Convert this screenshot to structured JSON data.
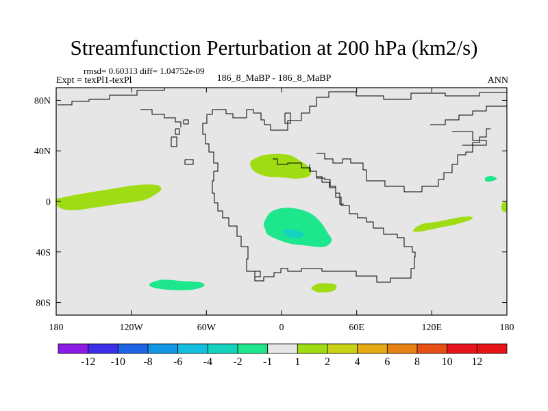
{
  "header": {
    "title": "Streamfunction Perturbation at 200 hPa (km2/s)",
    "stats": "rmsd= 0.60313 diff= 1.04752e-09",
    "left_label": "Expt = texPl1-texPl",
    "center_label": "186_8_MaBP - 186_8_MaBP",
    "right_label": "ANN"
  },
  "chart_data": {
    "type": "heatmap",
    "xlim": [
      -180,
      180
    ],
    "ylim": [
      -90,
      90
    ],
    "y_ticks": [
      80,
      40,
      0,
      -40,
      -80
    ],
    "y_tick_labels": [
      "80N",
      "40N",
      "0",
      "40S",
      "80S"
    ],
    "x_ticks": [
      -180,
      -120,
      -60,
      0,
      60,
      120,
      180
    ],
    "x_tick_labels": [
      "180",
      "120W",
      "60W",
      "0",
      "60E",
      "120E",
      "180"
    ],
    "background_color": "#e6e6e6",
    "colorbar": {
      "labels": [
        "-12",
        "-10",
        "-8",
        "-6",
        "-4",
        "-2",
        "-1",
        "1",
        "2",
        "4",
        "6",
        "8",
        "10",
        "12"
      ],
      "colors": [
        "#8c1be6",
        "#3c2ee6",
        "#1e64e6",
        "#1496e6",
        "#14bede",
        "#14d2be",
        "#1ee68c",
        "#e6e6e6",
        "#a0dc14",
        "#c8d214",
        "#e6aa14",
        "#e68214",
        "#e65014",
        "#e6141e",
        "#e61414"
      ]
    },
    "features": [
      {
        "name": "anomaly-equatorial-west-pacific",
        "level": "1 to 2",
        "color": "#a0dc14",
        "points": [
          [
            -180,
            -2
          ],
          [
            -175,
            -6
          ],
          [
            -165,
            -7
          ],
          [
            -150,
            -5
          ],
          [
            -130,
            -2
          ],
          [
            -110,
            1
          ],
          [
            -100,
            6
          ],
          [
            -96,
            10
          ],
          [
            -100,
            13
          ],
          [
            -115,
            13
          ],
          [
            -135,
            10
          ],
          [
            -160,
            6
          ],
          [
            -175,
            3
          ],
          [
            -180,
            2
          ]
        ]
      },
      {
        "name": "anomaly-north-africa",
        "level": "1 to 2",
        "color": "#a0dc14",
        "points": [
          [
            -23,
            33
          ],
          [
            -12,
            37
          ],
          [
            5,
            37
          ],
          [
            15,
            32
          ],
          [
            23,
            26
          ],
          [
            22,
            20
          ],
          [
            12,
            18
          ],
          [
            0,
            19
          ],
          [
            -13,
            20
          ],
          [
            -22,
            24
          ],
          [
            -25,
            29
          ]
        ]
      },
      {
        "name": "anomaly-south-atlantic-africa",
        "level": "-2 to -1",
        "color": "#1ee68c",
        "points": [
          [
            -14,
            -17
          ],
          [
            -8,
            -8
          ],
          [
            5,
            -5
          ],
          [
            20,
            -8
          ],
          [
            30,
            -15
          ],
          [
            37,
            -25
          ],
          [
            40,
            -31
          ],
          [
            34,
            -36
          ],
          [
            20,
            -35
          ],
          [
            5,
            -33
          ],
          [
            -10,
            -27
          ],
          [
            -13,
            -22
          ]
        ]
      },
      {
        "name": "anomaly-south-atlantic-core",
        "level": "-4 to -2",
        "color": "#14d2be",
        "points": [
          [
            3,
            -22
          ],
          [
            12,
            -23
          ],
          [
            18,
            -26
          ],
          [
            14,
            -29
          ],
          [
            5,
            -28
          ],
          [
            2,
            -25
          ]
        ]
      },
      {
        "name": "anomaly-southern-ocean-pacific",
        "level": "-2 to -1",
        "color": "#1ee68c",
        "points": [
          [
            -105,
            -65
          ],
          [
            -95,
            -62
          ],
          [
            -80,
            -63
          ],
          [
            -65,
            -64
          ],
          [
            -62,
            -67
          ],
          [
            -72,
            -70
          ],
          [
            -90,
            -70
          ],
          [
            -103,
            -68
          ]
        ]
      },
      {
        "name": "anomaly-southern-ocean-africa",
        "level": "1 to 2",
        "color": "#a0dc14",
        "points": [
          [
            24,
            -68
          ],
          [
            30,
            -65
          ],
          [
            40,
            -65
          ],
          [
            44,
            -67
          ],
          [
            41,
            -71
          ],
          [
            30,
            -72
          ],
          [
            25,
            -70
          ]
        ]
      },
      {
        "name": "anomaly-indian-ocean",
        "level": "1 to 2",
        "color": "#a0dc14",
        "points": [
          [
            105,
            -23
          ],
          [
            112,
            -18
          ],
          [
            125,
            -16
          ],
          [
            140,
            -13
          ],
          [
            150,
            -12
          ],
          [
            152,
            -14
          ],
          [
            140,
            -18
          ],
          [
            125,
            -21
          ],
          [
            110,
            -24
          ]
        ]
      },
      {
        "name": "anomaly-west-pacific-north",
        "level": "-2 to -1",
        "color": "#1ee68c",
        "points": [
          [
            163,
            19
          ],
          [
            168,
            20
          ],
          [
            172,
            18
          ],
          [
            168,
            16
          ],
          [
            163,
            16
          ]
        ]
      },
      {
        "name": "anomaly-dateline-edge",
        "level": "1 to 2",
        "color": "#a0dc14",
        "points": [
          [
            176,
            -2
          ],
          [
            180,
            0
          ],
          [
            180,
            -8
          ],
          [
            176,
            -7
          ]
        ]
      }
    ]
  }
}
